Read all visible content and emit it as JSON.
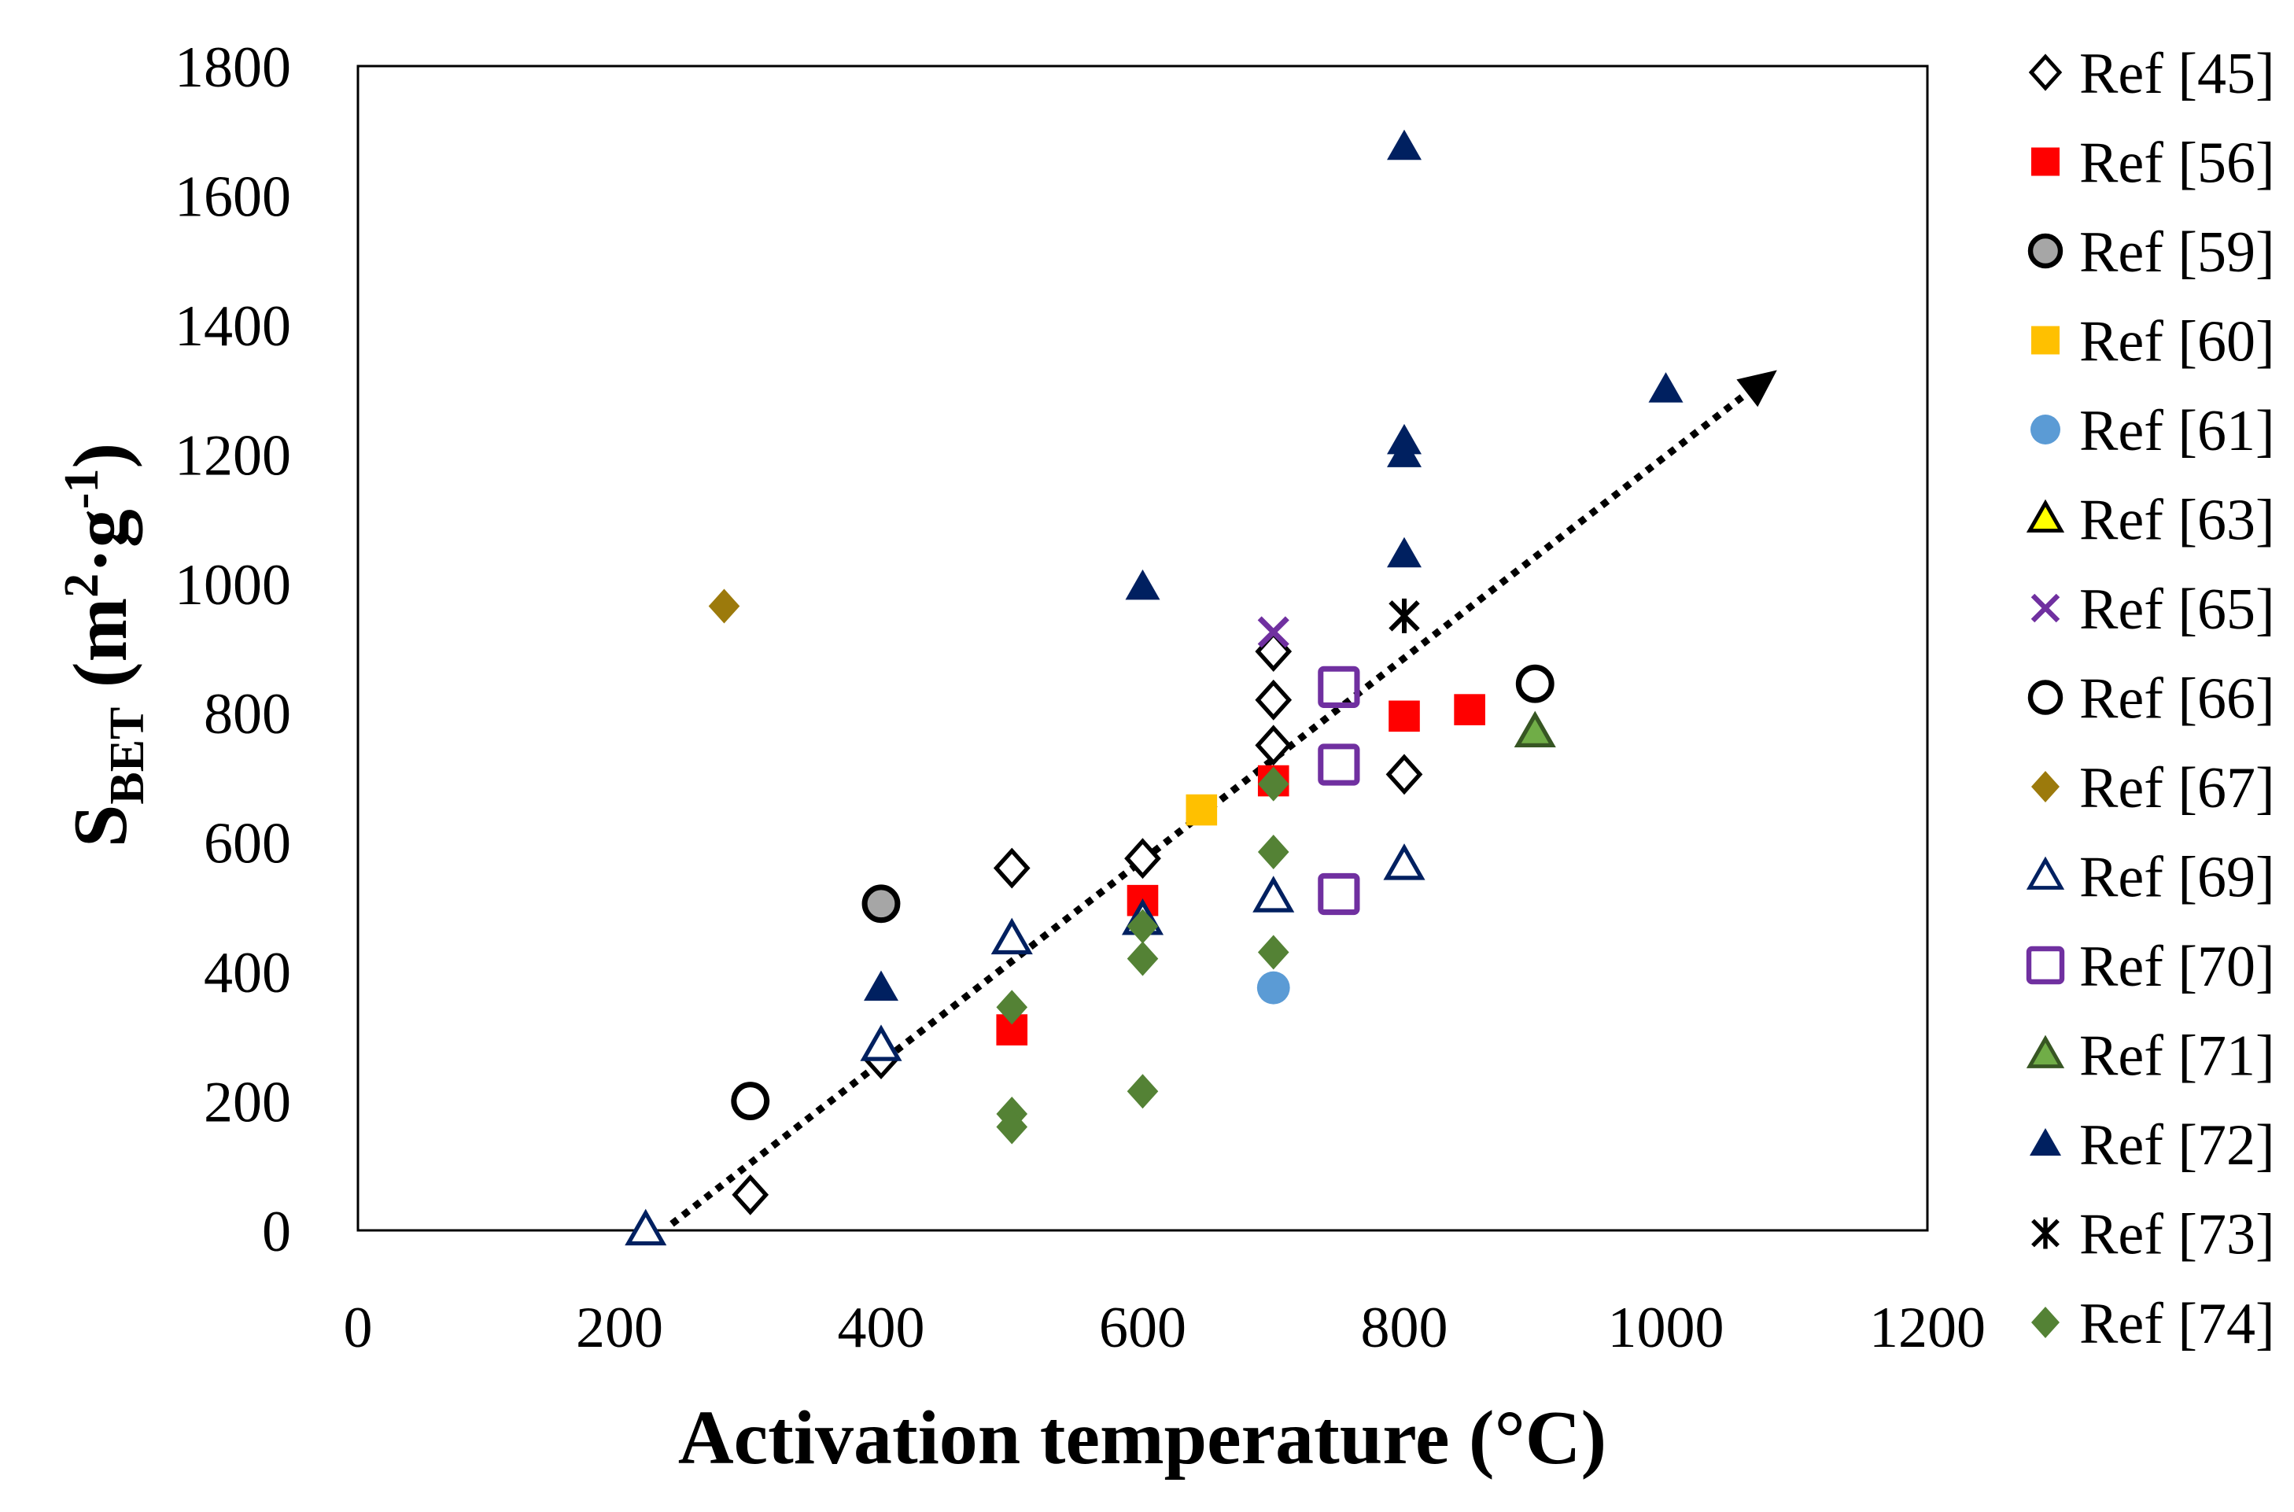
{
  "chart_data": {
    "type": "scatter",
    "title": "",
    "xlabel": "Activation temperature (°C)",
    "ylabel_main": "S",
    "ylabel_sub": "BET",
    "ylabel_unit_open": " (m",
    "ylabel_unit_sup1": "2",
    "ylabel_unit_mid": "·g",
    "ylabel_unit_sup2": "-1",
    "ylabel_unit_close": ")",
    "xlim": [
      0,
      1200
    ],
    "ylim": [
      0,
      1800
    ],
    "xticks": [
      "0",
      "200",
      "400",
      "600",
      "800",
      "1000",
      "1200"
    ],
    "yticks": [
      "0",
      "200",
      "400",
      "600",
      "800",
      "1000",
      "1200",
      "1400",
      "1600",
      "1800"
    ],
    "grid": false,
    "legend_position": "right",
    "trendline": {
      "style": "dotted-arrow",
      "from": [
        240,
        10
      ],
      "to": [
        1085,
        1330
      ]
    },
    "series": [
      {
        "name": "Ref [45]",
        "marker": "diamond-open",
        "color": "#000000",
        "points": [
          [
            300,
            55
          ],
          [
            400,
            265
          ],
          [
            500,
            560
          ],
          [
            600,
            575
          ],
          [
            700,
            895
          ],
          [
            700,
            820
          ],
          [
            700,
            750
          ],
          [
            800,
            705
          ]
        ]
      },
      {
        "name": "Ref [56]",
        "marker": "square-filled",
        "color": "#ff0000",
        "points": [
          [
            500,
            310
          ],
          [
            600,
            510
          ],
          [
            700,
            695
          ],
          [
            800,
            795
          ],
          [
            850,
            805
          ]
        ]
      },
      {
        "name": "Ref [59]",
        "marker": "circle-gray",
        "color": "#000000",
        "fill": "#a6a6a6",
        "points": [
          [
            400,
            505
          ]
        ]
      },
      {
        "name": "Ref [60]",
        "marker": "square-filled",
        "color": "#ffc000",
        "points": [
          [
            645,
            650
          ]
        ]
      },
      {
        "name": "Ref [61]",
        "marker": "circle-filled",
        "color": "#5b9bd5",
        "points": [
          [
            700,
            375
          ]
        ]
      },
      {
        "name": "Ref [63]",
        "marker": "triangle-yellow",
        "color": "#000000",
        "fill": "#ffff00",
        "points": []
      },
      {
        "name": "Ref [65]",
        "marker": "x",
        "color": "#7030a0",
        "points": [
          [
            700,
            925
          ]
        ]
      },
      {
        "name": "Ref [66]",
        "marker": "circle-open",
        "color": "#000000",
        "points": [
          [
            300,
            200
          ],
          [
            900,
            845
          ]
        ]
      },
      {
        "name": "Ref [67]",
        "marker": "diamond-filled",
        "color": "#9c7a0c",
        "points": [
          [
            280,
            965
          ]
        ]
      },
      {
        "name": "Ref [69]",
        "marker": "triangle-open",
        "color": "#002060",
        "points": [
          [
            220,
            0
          ],
          [
            400,
            285
          ],
          [
            500,
            450
          ],
          [
            600,
            480
          ],
          [
            700,
            515
          ],
          [
            800,
            565
          ]
        ]
      },
      {
        "name": "Ref [70]",
        "marker": "square-open",
        "color": "#7030a0",
        "points": [
          [
            750,
            840
          ],
          [
            750,
            720
          ],
          [
            750,
            520
          ]
        ]
      },
      {
        "name": "Ref [71]",
        "marker": "triangle-green",
        "color": "#375623",
        "fill": "#70ad47",
        "points": [
          [
            900,
            770
          ]
        ]
      },
      {
        "name": "Ref [72]",
        "marker": "triangle-filled",
        "color": "#002060",
        "points": [
          [
            400,
            375
          ],
          [
            600,
            995
          ],
          [
            800,
            1675
          ],
          [
            800,
            1220
          ],
          [
            800,
            1200
          ],
          [
            800,
            1045
          ],
          [
            1000,
            1300
          ]
        ]
      },
      {
        "name": "Ref [73]",
        "marker": "asterisk",
        "color": "#000000",
        "points": [
          [
            800,
            950
          ]
        ]
      },
      {
        "name": "Ref [74]",
        "marker": "diamond-filled",
        "color": "#548235",
        "points": [
          [
            500,
            180
          ],
          [
            500,
            160
          ],
          [
            500,
            345
          ],
          [
            600,
            215
          ],
          [
            600,
            420
          ],
          [
            600,
            470
          ],
          [
            700,
            690
          ],
          [
            700,
            585
          ],
          [
            700,
            430
          ]
        ]
      }
    ]
  }
}
